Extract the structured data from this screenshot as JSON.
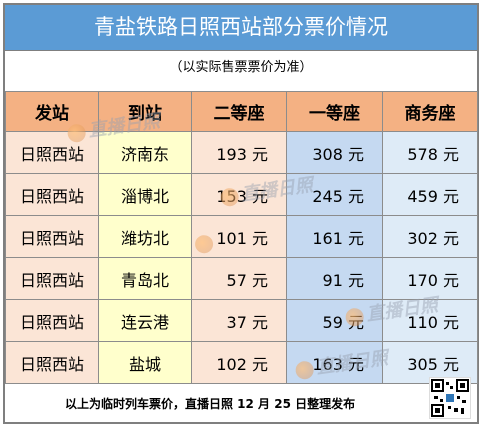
{
  "title": "青盐铁路日照西站部分票价情况",
  "subtitle": "（以实际售票票价为准）",
  "headers": [
    "发站",
    "到站",
    "二等座",
    "一等座",
    "商务座"
  ],
  "rows": [
    [
      "日照西站",
      "济南东",
      "193 元",
      "308 元",
      "578 元"
    ],
    [
      "日照西站",
      "淄博北",
      "153 元",
      "245 元",
      "459 元"
    ],
    [
      "日照西站",
      "潍坊北",
      "101 元",
      "161 元",
      "302 元"
    ],
    [
      "日照西站",
      "青岛北",
      "57 元",
      "91 元",
      "170 元"
    ],
    [
      "日照西站",
      "连云港",
      "37 元",
      "59 元",
      "110 元"
    ],
    [
      "日照西站",
      "盐城",
      "102 元",
      "163 元",
      "305 元"
    ]
  ],
  "footer": "以上为临时列车票价，直播日照 12 月 25 日整理发布",
  "watermark": "直播日照",
  "colors": {
    "title_bg": "#5b9bd5",
    "header_bg": "#f4b183",
    "col_from": "#fbe5d6",
    "col_to": "#ffffcc",
    "col_second": "#fbe5d6",
    "col_first": "#c5d9f1",
    "col_business": "#deebf7"
  }
}
